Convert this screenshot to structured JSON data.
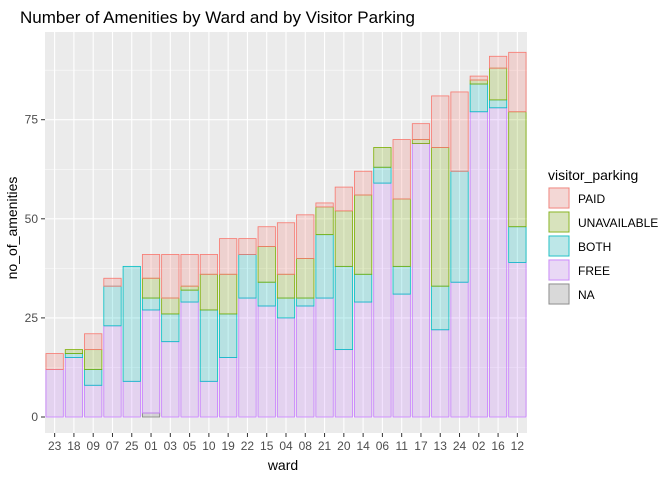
{
  "chart_data": {
    "type": "bar",
    "stacked": true,
    "title": "Number of Amenities by Ward and by Visitor Parking",
    "xlabel": "ward",
    "ylabel": "no_of_amenities",
    "ylim": [
      0,
      95
    ],
    "yticks": [
      0,
      25,
      50,
      75
    ],
    "grid": true,
    "legend": {
      "title": "visitor_parking",
      "position": "right"
    },
    "categories": [
      "23",
      "18",
      "09",
      "07",
      "25",
      "01",
      "03",
      "05",
      "10",
      "19",
      "22",
      "15",
      "04",
      "08",
      "21",
      "20",
      "14",
      "06",
      "11",
      "17",
      "13",
      "24",
      "02",
      "16",
      "12"
    ],
    "series": [
      {
        "name": "NA",
        "color": "#7f7f7f",
        "values": [
          0,
          0,
          0,
          0,
          0,
          1,
          0,
          0,
          0,
          0,
          0,
          0,
          0,
          0,
          0,
          0,
          0,
          0,
          0,
          0,
          0,
          0,
          0,
          0,
          0
        ]
      },
      {
        "name": "FREE",
        "color": "#C77CFF",
        "values": [
          12,
          15,
          8,
          23,
          9,
          26,
          19,
          29,
          9,
          15,
          30,
          28,
          25,
          28,
          30,
          17,
          29,
          59,
          31,
          69,
          22,
          34,
          77,
          78,
          39
        ]
      },
      {
        "name": "BOTH",
        "color": "#00BFC4",
        "values": [
          0,
          1,
          4,
          10,
          29,
          3,
          7,
          3,
          18,
          11,
          11,
          6,
          5,
          2,
          16,
          21,
          7,
          4,
          7,
          0,
          11,
          28,
          7,
          2,
          9
        ]
      },
      {
        "name": "UNAVAILABLE",
        "color": "#7CAE00",
        "values": [
          0,
          1,
          5,
          0,
          0,
          5,
          4,
          1,
          9,
          10,
          0,
          9,
          6,
          10,
          7,
          14,
          20,
          5,
          17,
          1,
          35,
          0,
          1,
          8,
          29
        ]
      },
      {
        "name": "PAID",
        "color": "#F8766D",
        "values": [
          4,
          0,
          4,
          2,
          0,
          6,
          11,
          8,
          5,
          9,
          4,
          5,
          13,
          11,
          1,
          6,
          6,
          0,
          15,
          4,
          13,
          20,
          1,
          3,
          15
        ]
      }
    ],
    "legend_order": [
      "PAID",
      "UNAVAILABLE",
      "BOTH",
      "FREE",
      "NA"
    ]
  }
}
